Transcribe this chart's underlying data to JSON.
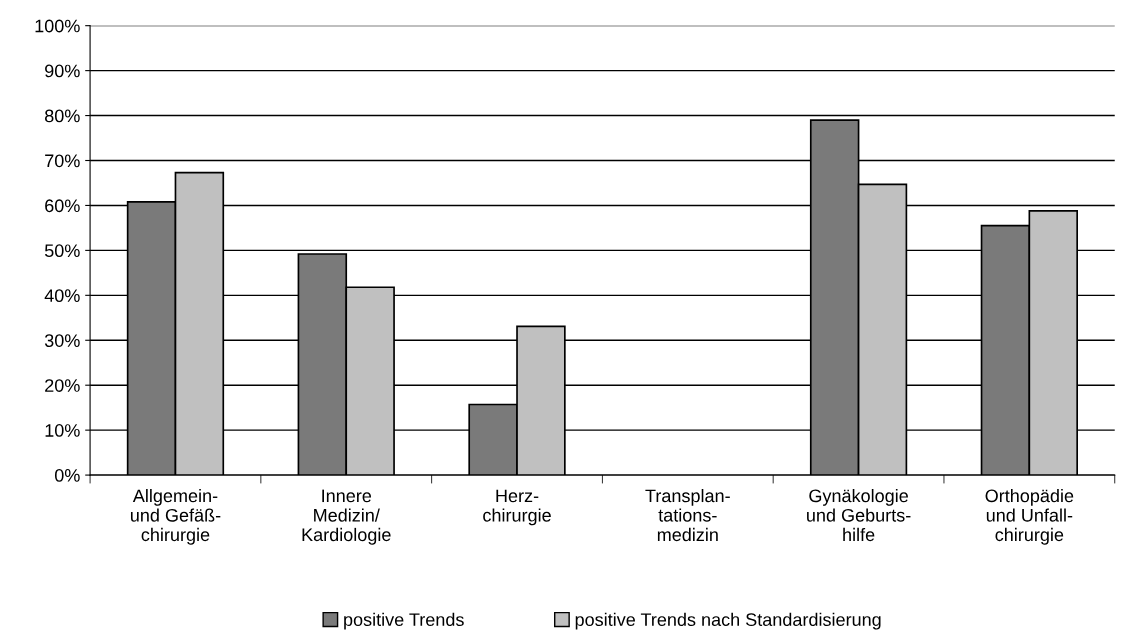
{
  "chart_data": {
    "type": "bar",
    "categories": [
      "Allgemein-\nund Gefäß-\nchirurgie",
      "Innere\nMedizin/\nKardiologie",
      "Herz-\nchirurgie",
      "Transplan-\ntations-\nmedizin",
      "Gynäkologie\nund Geburts-\nhilfe",
      "Orthopädie\nund Unfall-\nchirurgie"
    ],
    "series": [
      {
        "name": "positive Trends",
        "color": "#7a7a7a",
        "values": [
          60.8,
          49.2,
          15.7,
          null,
          79.0,
          55.5
        ]
      },
      {
        "name": "positive Trends nach Standardisierung",
        "color": "#c0c0c0",
        "values": [
          67.3,
          41.8,
          33.1,
          null,
          64.7,
          58.8
        ]
      }
    ],
    "ylim": [
      0,
      100
    ],
    "yticks": [
      {
        "value": 0,
        "label": "0%"
      },
      {
        "value": 10,
        "label": "10%"
      },
      {
        "value": 20,
        "label": "20%"
      },
      {
        "value": 30,
        "label": "30%"
      },
      {
        "value": 40,
        "label": "40%"
      },
      {
        "value": 50,
        "label": "50%"
      },
      {
        "value": 60,
        "label": "60%"
      },
      {
        "value": 70,
        "label": "70%"
      },
      {
        "value": 80,
        "label": "80%"
      },
      {
        "value": 90,
        "label": "90%"
      },
      {
        "value": 100,
        "label": "100%"
      }
    ],
    "grid": "y",
    "legend": "bottom"
  }
}
